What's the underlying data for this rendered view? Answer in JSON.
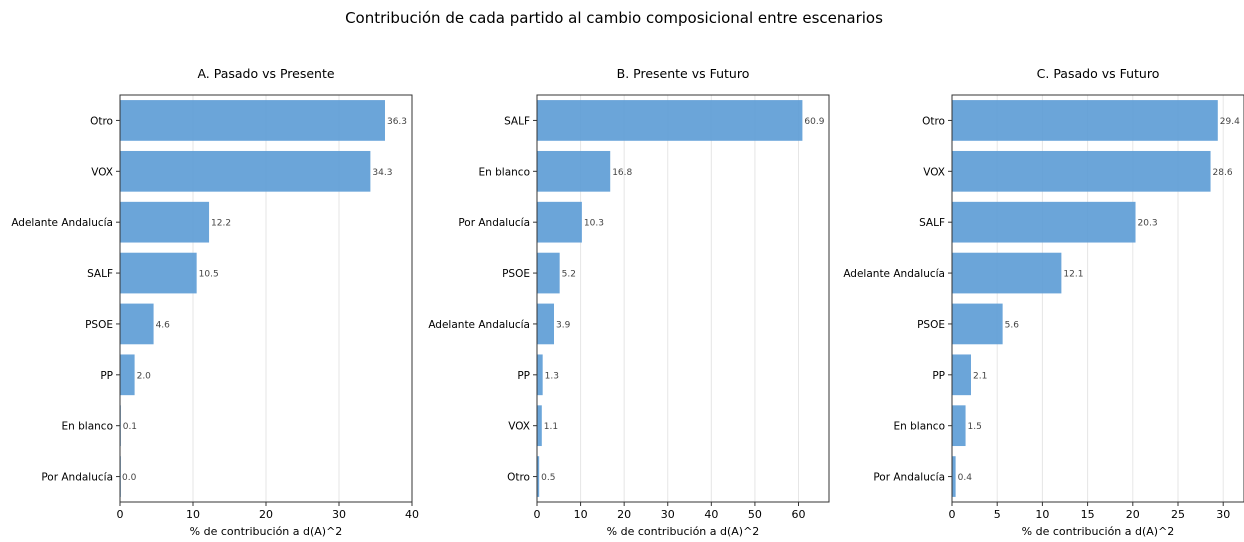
{
  "figure": {
    "title": "Contribución de cada partido al cambio composicional entre escenarios"
  },
  "chart_data": [
    {
      "type": "bar",
      "orientation": "horizontal",
      "title": "A. Pasado vs Presente",
      "xlabel": "% de contribución a d(A)^2",
      "ylabel": "",
      "xlim": [
        0,
        40
      ],
      "xticks": [
        0,
        10,
        20,
        30,
        40
      ],
      "xtick_labels": [
        "0",
        "10",
        "20",
        "30",
        "40"
      ],
      "grid": "vertical",
      "categories": [
        "Otro",
        "VOX",
        "Adelante Andalucía",
        "SALF",
        "PSOE",
        "PP",
        "En blanco",
        "Por Andalucía"
      ],
      "values": [
        36.3,
        34.3,
        12.2,
        10.5,
        4.6,
        2.0,
        0.1,
        0.0
      ],
      "value_labels": [
        "36.3",
        "34.3",
        "12.2",
        "10.5",
        "4.6",
        "2.0",
        "0.1",
        "0.0"
      ]
    },
    {
      "type": "bar",
      "orientation": "horizontal",
      "title": "B. Presente vs Futuro",
      "xlabel": "% de contribución a d(A)^2",
      "ylabel": "",
      "xlim": [
        0,
        67
      ],
      "xticks": [
        0,
        10,
        20,
        30,
        40,
        50,
        60
      ],
      "xtick_labels": [
        "0",
        "10",
        "20",
        "30",
        "40",
        "50",
        "60"
      ],
      "grid": "vertical",
      "categories": [
        "SALF",
        "En blanco",
        "Por Andalucía",
        "PSOE",
        "Adelante Andalucía",
        "PP",
        "VOX",
        "Otro"
      ],
      "values": [
        60.9,
        16.8,
        10.3,
        5.2,
        3.9,
        1.3,
        1.1,
        0.5
      ],
      "value_labels": [
        "60.9",
        "16.8",
        "10.3",
        "5.2",
        "3.9",
        "1.3",
        "1.1",
        "0.5"
      ]
    },
    {
      "type": "bar",
      "orientation": "horizontal",
      "title": "C. Pasado vs Futuro",
      "xlabel": "% de contribución a d(A)^2",
      "ylabel": "",
      "xlim": [
        0,
        32.3
      ],
      "xticks": [
        0,
        5,
        10,
        15,
        20,
        25,
        30
      ],
      "xtick_labels": [
        "0",
        "5",
        "10",
        "15",
        "20",
        "25",
        "30"
      ],
      "grid": "vertical",
      "categories": [
        "Otro",
        "VOX",
        "SALF",
        "Adelante Andalucía",
        "PSOE",
        "PP",
        "En blanco",
        "Por Andalucía"
      ],
      "values": [
        29.4,
        28.6,
        20.3,
        12.1,
        5.6,
        2.1,
        1.5,
        0.4
      ],
      "value_labels": [
        "29.4",
        "28.6",
        "20.3",
        "12.1",
        "5.6",
        "2.1",
        "1.5",
        "0.4"
      ]
    }
  ]
}
